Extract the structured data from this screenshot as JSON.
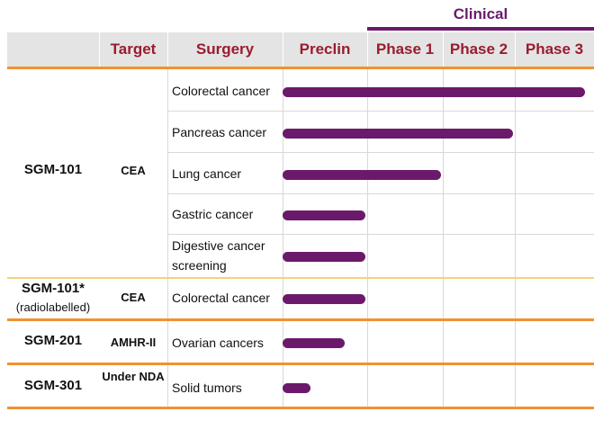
{
  "colors": {
    "header_text": "#9b1b30",
    "clinical": "#6b1a6b",
    "bar": "#6b1a6b",
    "divider": "#f0922f"
  },
  "clinical_label": "Clinical",
  "headers": {
    "target": "Target",
    "surgery": "Surgery",
    "preclin": "Preclin",
    "phase1": "Phase 1",
    "phase2": "Phase 2",
    "phase3": "Phase 3"
  },
  "products": [
    {
      "name": "SGM-101",
      "note": "",
      "target": "CEA",
      "indications": [
        {
          "label": "Colorectal cancer",
          "stage": 4.0
        },
        {
          "label": "Pancreas cancer",
          "stage": 3.0
        },
        {
          "label": "Lung cancer",
          "stage": 2.0
        },
        {
          "label": "Gastric cancer",
          "stage": 1.0
        },
        {
          "label": "Digestive cancer screening",
          "stage": 1.0
        }
      ]
    },
    {
      "name": "SGM-101*",
      "note": "(radiolabelled)",
      "target": "CEA",
      "indications": [
        {
          "label": "Colorectal cancer",
          "stage": 1.0
        }
      ]
    },
    {
      "name": "SGM-201",
      "note": "",
      "target": "AMHR-II",
      "indications": [
        {
          "label": "Ovarian cancers",
          "stage": 0.75
        }
      ]
    },
    {
      "name": "SGM-301",
      "note": "",
      "target": "Under NDA",
      "indications": [
        {
          "label": "Solid tumors",
          "stage": 0.35
        }
      ]
    }
  ]
}
